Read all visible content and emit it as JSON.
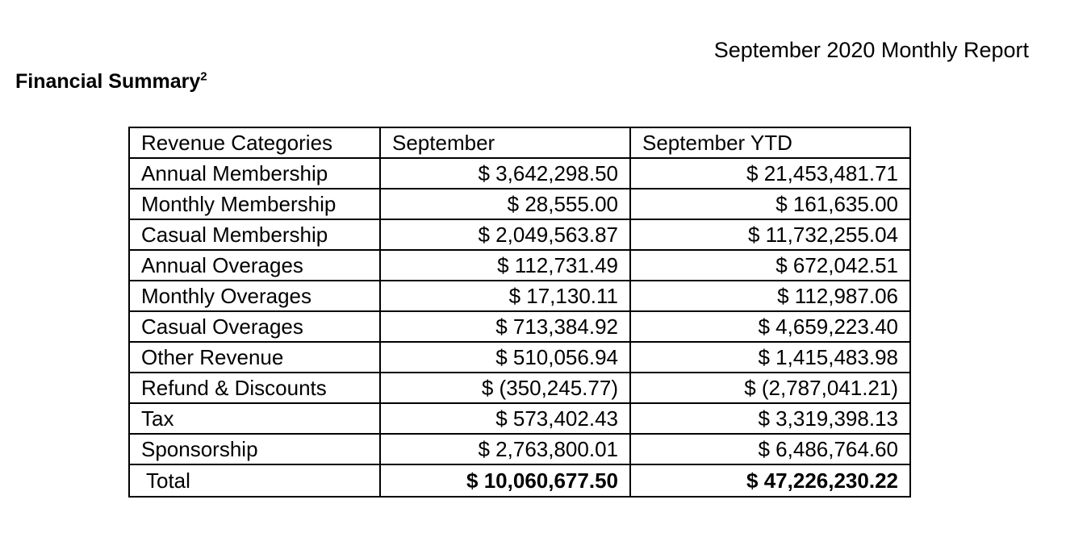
{
  "report": {
    "title": "September 2020 Monthly Report"
  },
  "section": {
    "title": "Financial Summary",
    "footnote": "2"
  },
  "table": {
    "headers": [
      "Revenue Categories",
      "September",
      "September YTD"
    ],
    "rows": [
      {
        "category": "Annual Membership",
        "september": "$ 3,642,298.50",
        "ytd": "$ 21,453,481.71"
      },
      {
        "category": "Monthly Membership",
        "september": "$ 28,555.00",
        "ytd": "$ 161,635.00"
      },
      {
        "category": "Casual Membership",
        "september": "$ 2,049,563.87",
        "ytd": "$ 11,732,255.04"
      },
      {
        "category": "Annual Overages",
        "september": "$ 112,731.49",
        "ytd": "$ 672,042.51"
      },
      {
        "category": "Monthly Overages",
        "september": "$ 17,130.11",
        "ytd": "$ 112,987.06"
      },
      {
        "category": "Casual Overages",
        "september": "$ 713,384.92",
        "ytd": "$ 4,659,223.40"
      },
      {
        "category": "Other Revenue",
        "september": "$ 510,056.94",
        "ytd": "$ 1,415,483.98"
      },
      {
        "category": "Refund & Discounts",
        "september": "$ (350,245.77)",
        "ytd": "$ (2,787,041.21)"
      },
      {
        "category": "Tax",
        "september": "$ 573,402.43",
        "ytd": "$ 3,319,398.13"
      },
      {
        "category": "Sponsorship",
        "september": "$ 2,763,800.01",
        "ytd": "$ 6,486,764.60"
      }
    ],
    "total": {
      "category": "Total",
      "september": "$ 10,060,677.50",
      "ytd": "$ 47,226,230.22"
    }
  }
}
